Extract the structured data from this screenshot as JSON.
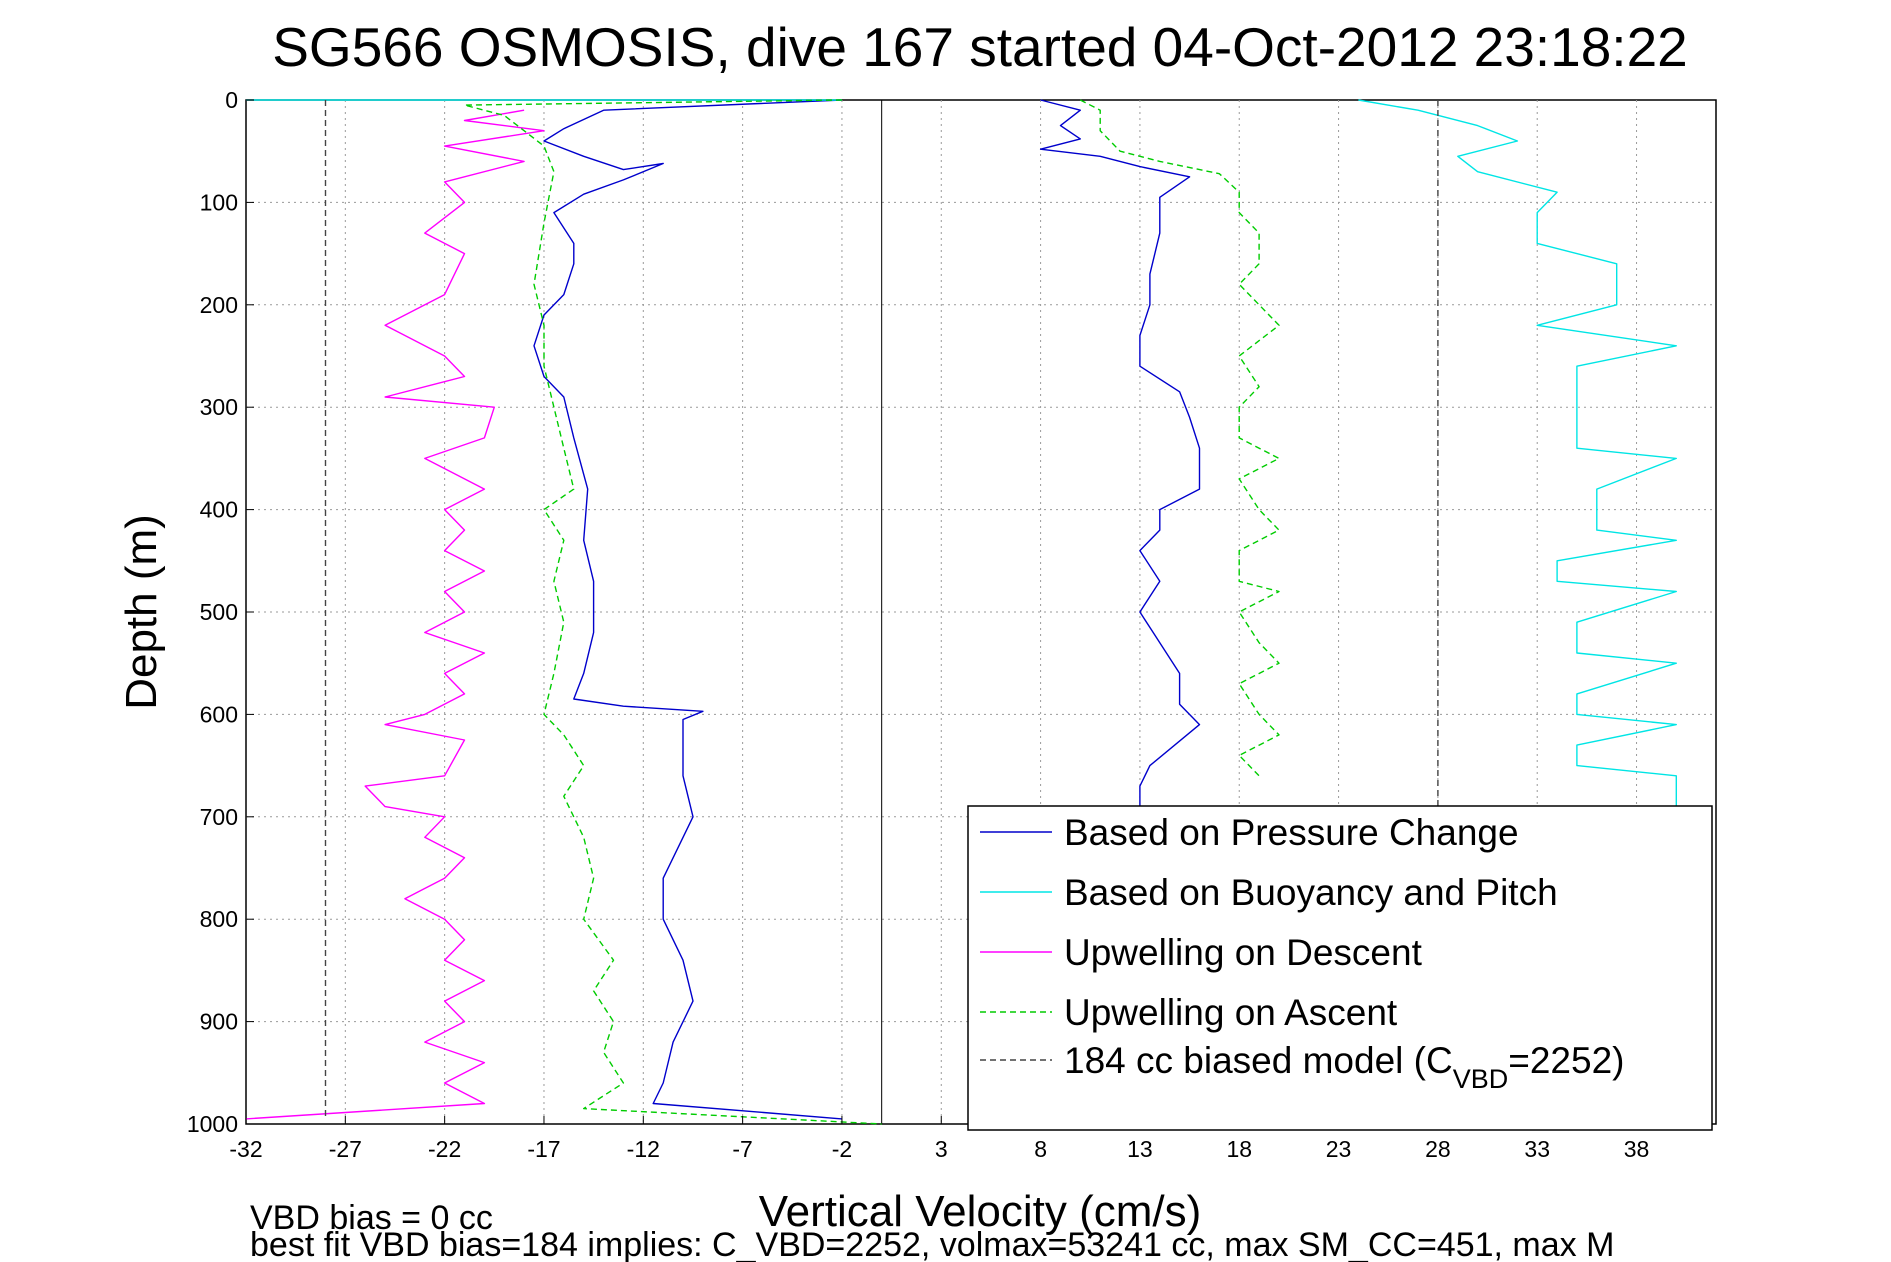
{
  "chart_data": {
    "type": "line",
    "title": "SG566 OSMOSIS, dive 167 started 04-Oct-2012 23:18:22",
    "xlabel": "Vertical Velocity (cm/s)",
    "ylabel": "Depth (m)",
    "xlim": [
      -32,
      42
    ],
    "ylim": [
      0,
      1000
    ],
    "y_reversed": true,
    "grid": true,
    "x_ticks": [
      -32,
      -27,
      -22,
      -17,
      -12,
      -7,
      -2,
      3,
      8,
      13,
      18,
      23,
      28,
      33,
      38
    ],
    "y_ticks": [
      0,
      100,
      200,
      300,
      400,
      500,
      600,
      700,
      800,
      900,
      1000
    ],
    "legend_position": "bottom-right",
    "legend_entries": [
      {
        "label_text": "Based on Pressure Change",
        "color": "#0000cc",
        "dashed": false
      },
      {
        "label_text": "Based on Buoyancy and Pitch",
        "color": "#00e5e5",
        "dashed": false
      },
      {
        "label_text": "Upwelling on Descent",
        "color": "#ff00ff",
        "dashed": false
      },
      {
        "label_text": "Upwelling on Ascent",
        "color": "#00cc00",
        "dashed": true
      },
      {
        "label_text": "184 cc biased model (C",
        "sub": "VBD",
        "tail": "=2252)",
        "color": "#444444",
        "dashed": true
      }
    ],
    "zero_line_x": 0,
    "series": [
      {
        "key": "pressure_descent",
        "color": "#0000cc",
        "dashed": false,
        "points": [
          [
            -2,
            0
          ],
          [
            -14,
            10
          ],
          [
            -16,
            28
          ],
          [
            -17,
            40
          ],
          [
            -15,
            55
          ],
          [
            -13,
            68
          ],
          [
            -11,
            62
          ],
          [
            -13,
            78
          ],
          [
            -15,
            92
          ],
          [
            -16.5,
            110
          ],
          [
            -15.5,
            140
          ],
          [
            -15.5,
            160
          ],
          [
            -16,
            190
          ],
          [
            -17,
            210
          ],
          [
            -17.5,
            240
          ],
          [
            -17,
            270
          ],
          [
            -16,
            290
          ],
          [
            -15.5,
            330
          ],
          [
            -14.8,
            380
          ],
          [
            -15,
            430
          ],
          [
            -14.5,
            470
          ],
          [
            -14.5,
            520
          ],
          [
            -15,
            560
          ],
          [
            -15.5,
            585
          ],
          [
            -13,
            592
          ],
          [
            -9,
            597
          ],
          [
            -10,
            605
          ],
          [
            -10,
            660
          ],
          [
            -9.5,
            700
          ],
          [
            -11,
            760
          ],
          [
            -11,
            800
          ],
          [
            -10,
            840
          ],
          [
            -9.5,
            880
          ],
          [
            -10.5,
            920
          ],
          [
            -11,
            960
          ],
          [
            -11.5,
            980
          ],
          [
            -2,
            995
          ]
        ]
      },
      {
        "key": "pressure_ascent",
        "color": "#0000cc",
        "dashed": false,
        "points": [
          [
            8,
            0
          ],
          [
            10,
            10
          ],
          [
            9,
            25
          ],
          [
            10,
            38
          ],
          [
            8,
            48
          ],
          [
            11,
            55
          ],
          [
            13,
            65
          ],
          [
            15.5,
            75
          ],
          [
            14,
            95
          ],
          [
            14,
            130
          ],
          [
            13.5,
            170
          ],
          [
            13.5,
            200
          ],
          [
            13,
            230
          ],
          [
            13,
            260
          ],
          [
            15,
            285
          ],
          [
            15.5,
            310
          ],
          [
            16,
            340
          ],
          [
            16,
            380
          ],
          [
            14,
            400
          ],
          [
            14,
            420
          ],
          [
            13,
            440
          ],
          [
            14,
            470
          ],
          [
            13,
            500
          ],
          [
            14,
            530
          ],
          [
            15,
            560
          ],
          [
            15,
            590
          ],
          [
            16,
            610
          ],
          [
            13.5,
            650
          ],
          [
            13,
            670
          ],
          [
            13,
            700
          ],
          [
            8,
            998
          ]
        ]
      },
      {
        "key": "buoyancy_descent",
        "color": "#00e5e5",
        "dashed": false,
        "points": [
          [
            -2,
            0
          ],
          [
            -32,
            0
          ]
        ]
      },
      {
        "key": "buoyancy_ascent",
        "color": "#00e5e5",
        "dashed": false,
        "points": [
          [
            24,
            0
          ],
          [
            27,
            10
          ],
          [
            30,
            25
          ],
          [
            32,
            40
          ],
          [
            29,
            55
          ],
          [
            30,
            70
          ],
          [
            34,
            90
          ],
          [
            33,
            110
          ],
          [
            33,
            140
          ],
          [
            37,
            160
          ],
          [
            37,
            200
          ],
          [
            33,
            220
          ],
          [
            40,
            240
          ],
          [
            35,
            260
          ],
          [
            35,
            300
          ],
          [
            35,
            340
          ],
          [
            40,
            350
          ],
          [
            36,
            380
          ],
          [
            36,
            420
          ],
          [
            40,
            430
          ],
          [
            34,
            450
          ],
          [
            34,
            470
          ],
          [
            40,
            480
          ],
          [
            35,
            510
          ],
          [
            35,
            540
          ],
          [
            40,
            550
          ],
          [
            35,
            580
          ],
          [
            35,
            600
          ],
          [
            40,
            610
          ],
          [
            35,
            630
          ],
          [
            35,
            650
          ],
          [
            40,
            660
          ],
          [
            40,
            990
          ],
          [
            36,
            995
          ]
        ]
      },
      {
        "key": "upwelling_descent",
        "color": "#ff00ff",
        "dashed": false,
        "points": [
          [
            -18,
            10
          ],
          [
            -21,
            20
          ],
          [
            -17,
            30
          ],
          [
            -22,
            45
          ],
          [
            -18,
            60
          ],
          [
            -22,
            80
          ],
          [
            -21,
            100
          ],
          [
            -23,
            130
          ],
          [
            -21,
            150
          ],
          [
            -22,
            190
          ],
          [
            -25,
            220
          ],
          [
            -22,
            250
          ],
          [
            -21,
            270
          ],
          [
            -25,
            290
          ],
          [
            -19.5,
            300
          ],
          [
            -20,
            330
          ],
          [
            -23,
            350
          ],
          [
            -20,
            380
          ],
          [
            -22,
            400
          ],
          [
            -21,
            420
          ],
          [
            -22,
            440
          ],
          [
            -20,
            460
          ],
          [
            -22,
            480
          ],
          [
            -21,
            500
          ],
          [
            -23,
            520
          ],
          [
            -20,
            540
          ],
          [
            -22,
            560
          ],
          [
            -21,
            580
          ],
          [
            -23,
            600
          ],
          [
            -25,
            610
          ],
          [
            -21,
            625
          ],
          [
            -22,
            660
          ],
          [
            -26,
            670
          ],
          [
            -25,
            690
          ],
          [
            -22,
            700
          ],
          [
            -23,
            720
          ],
          [
            -21,
            740
          ],
          [
            -22,
            760
          ],
          [
            -24,
            780
          ],
          [
            -22,
            800
          ],
          [
            -21,
            820
          ],
          [
            -22,
            840
          ],
          [
            -20,
            860
          ],
          [
            -22,
            880
          ],
          [
            -21,
            900
          ],
          [
            -23,
            920
          ],
          [
            -20,
            940
          ],
          [
            -22,
            960
          ],
          [
            -20,
            980
          ],
          [
            -32,
            995
          ]
        ]
      },
      {
        "key": "upwelling_ascent",
        "color": "#00cc00",
        "dashed": true,
        "points": [
          [
            -2,
            0
          ],
          [
            -21,
            5
          ],
          [
            -19,
            15
          ],
          [
            -18,
            30
          ],
          [
            -17,
            45
          ],
          [
            -16.5,
            70
          ],
          [
            -17,
            120
          ],
          [
            -17.5,
            180
          ],
          [
            -17,
            220
          ],
          [
            -17,
            260
          ],
          [
            -16.5,
            300
          ],
          [
            -16,
            340
          ],
          [
            -15.5,
            380
          ],
          [
            -17,
            400
          ],
          [
            -16,
            430
          ],
          [
            -16.5,
            470
          ],
          [
            -16,
            510
          ],
          [
            -16.5,
            560
          ],
          [
            -17,
            600
          ],
          [
            -16,
            620
          ],
          [
            -15,
            650
          ],
          [
            -16,
            680
          ],
          [
            -15,
            720
          ],
          [
            -14.5,
            760
          ],
          [
            -15,
            800
          ],
          [
            -13.5,
            840
          ],
          [
            -14.5,
            870
          ],
          [
            -13.5,
            900
          ],
          [
            -14,
            930
          ],
          [
            -13,
            960
          ],
          [
            -15,
            985
          ],
          [
            0,
            1000
          ]
        ]
      },
      {
        "key": "upwelling_ascent_right",
        "color": "#00cc00",
        "dashed": true,
        "points": [
          [
            10,
            0
          ],
          [
            11,
            10
          ],
          [
            11,
            30
          ],
          [
            12,
            50
          ],
          [
            14,
            60
          ],
          [
            17,
            72
          ],
          [
            18,
            90
          ],
          [
            18,
            110
          ],
          [
            19,
            130
          ],
          [
            19,
            160
          ],
          [
            18,
            180
          ],
          [
            19,
            200
          ],
          [
            20,
            220
          ],
          [
            18,
            250
          ],
          [
            19,
            280
          ],
          [
            18,
            300
          ],
          [
            18,
            330
          ],
          [
            20,
            350
          ],
          [
            18,
            370
          ],
          [
            19,
            400
          ],
          [
            20,
            420
          ],
          [
            18,
            440
          ],
          [
            18,
            470
          ],
          [
            20,
            480
          ],
          [
            18,
            500
          ],
          [
            19,
            530
          ],
          [
            20,
            550
          ],
          [
            18,
            570
          ],
          [
            19,
            600
          ],
          [
            20,
            620
          ],
          [
            18,
            640
          ],
          [
            19,
            660
          ]
        ]
      },
      {
        "key": "bias_model_descent",
        "color": "#444444",
        "dashed": true,
        "points": [
          [
            -28,
            0
          ],
          [
            -28,
            995
          ]
        ]
      },
      {
        "key": "bias_model_ascent",
        "color": "#444444",
        "dashed": true,
        "points": [
          [
            28,
            0
          ],
          [
            28,
            995
          ]
        ]
      }
    ]
  },
  "footer": {
    "line1": "VBD bias = 0 cc",
    "line2": "best fit VBD bias=184 implies: C_VBD=2252, volmax=53241 cc, max SM_CC=451, max M"
  }
}
